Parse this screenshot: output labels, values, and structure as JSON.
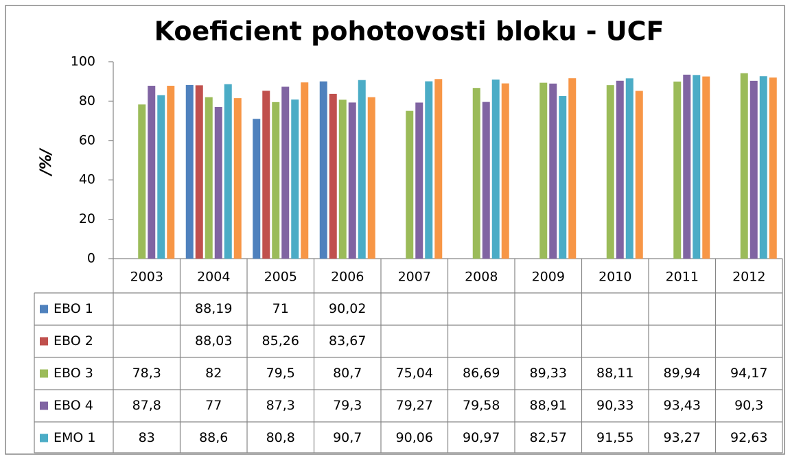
{
  "chart_data": {
    "type": "bar",
    "title": "Koeficient pohotovosti bloku - UCF",
    "y_label": "/%/",
    "categories": [
      "2003",
      "2004",
      "2005",
      "2006",
      "2007",
      "2008",
      "2009",
      "2010",
      "2011",
      "2012"
    ],
    "ylim": [
      0,
      100
    ],
    "yticks": [
      0,
      20,
      40,
      60,
      80,
      100
    ],
    "grid": false,
    "series": [
      {
        "name": "EBO 1",
        "color": "#4f81bd",
        "values": [
          null,
          88.19,
          71,
          90.02,
          null,
          null,
          null,
          null,
          null,
          null
        ],
        "value_labels": [
          null,
          "88,19",
          "71",
          "90,02",
          null,
          null,
          null,
          null,
          null,
          null
        ]
      },
      {
        "name": "EBO 2",
        "color": "#c0504d",
        "values": [
          null,
          88.03,
          85.26,
          83.67,
          null,
          null,
          null,
          null,
          null,
          null
        ],
        "value_labels": [
          null,
          "88,03",
          "85,26",
          "83,67",
          null,
          null,
          null,
          null,
          null,
          null
        ]
      },
      {
        "name": "EBO 3",
        "color": "#9bbb59",
        "values": [
          78.3,
          82,
          79.5,
          80.7,
          75.04,
          86.69,
          89.33,
          88.11,
          89.94,
          94.17
        ],
        "value_labels": [
          "78,3",
          "82",
          "79,5",
          "80,7",
          "75,04",
          "86,69",
          "89,33",
          "88,11",
          "89,94",
          "94,17"
        ]
      },
      {
        "name": "EBO 4",
        "color": "#8064a2",
        "values": [
          87.8,
          77,
          87.3,
          79.3,
          79.27,
          79.58,
          88.91,
          90.33,
          93.43,
          90.3
        ],
        "value_labels": [
          "87,8",
          "77",
          "87,3",
          "79,3",
          "79,27",
          "79,58",
          "88,91",
          "90,33",
          "93,43",
          "90,3"
        ]
      },
      {
        "name": "EMO 1",
        "color": "#4bacc6",
        "values": [
          83,
          88.6,
          80.8,
          90.7,
          90.06,
          90.97,
          82.57,
          91.55,
          93.27,
          92.63
        ],
        "value_labels": [
          "83",
          "88,6",
          "80,8",
          "90,7",
          "90,06",
          "90,97",
          "82,57",
          "91,55",
          "93,27",
          "92,63"
        ]
      },
      {
        "color": "#f79646",
        "values": [
          87.8,
          81.5,
          89.5,
          82,
          91.2,
          89,
          91.6,
          85.2,
          92.5,
          92
        ]
      }
    ]
  }
}
